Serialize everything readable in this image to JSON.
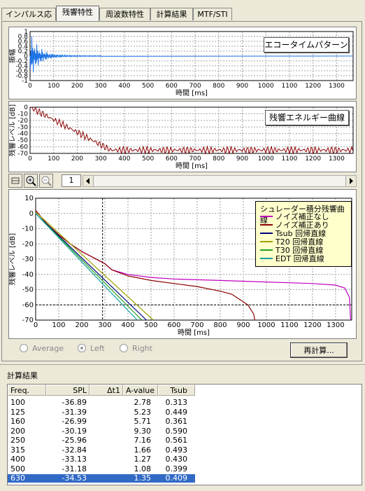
{
  "tabs": [
    {
      "label": "インパルス応答"
    },
    {
      "label": "残響特性"
    },
    {
      "label": "周波数特性"
    },
    {
      "label": "計算結果"
    },
    {
      "label": "MTF/STI"
    }
  ],
  "echo_plot": {
    "button_label": "エコータイムパターン",
    "ylabel": "振幅",
    "xlabel": "時間 [ms]",
    "x_ticks": [
      "0",
      "100",
      "200",
      "300",
      "400",
      "500",
      "600",
      "700",
      "800",
      "900",
      "1000",
      "1100",
      "1200",
      "1300"
    ],
    "y_ticks": [
      "1",
      "0.8",
      "0.6",
      "0.4",
      "0.2",
      "0",
      "-0.2",
      "-0.4",
      "-0.6",
      "-0.8",
      "-1"
    ],
    "color": "#1e74e6"
  },
  "energy_plot": {
    "button_label": "残響エネルギー曲線",
    "ylabel": "残響レベル [dB]",
    "xlabel": "時間 [ms]",
    "x_ticks": [
      "0",
      "100",
      "200",
      "300",
      "400",
      "500",
      "600",
      "700",
      "800",
      "900",
      "1000",
      "1100",
      "1200",
      "1300"
    ],
    "y_ticks": [
      "0",
      "-10",
      "-20",
      "-30",
      "-40",
      "-50",
      "-60",
      "-70"
    ],
    "color": "#8b0000"
  },
  "toolbar": {
    "page_value": "1",
    "icons": [
      "fit-icon",
      "zoom-in-icon",
      "zoom-out-icon"
    ]
  },
  "chart_data": {
    "type": "line",
    "xlabel": "時間 [ms]",
    "ylabel": "残響レベル [dB]",
    "xlim": [
      0,
      1370
    ],
    "ylim": [
      -70,
      10
    ],
    "x_ticks": [
      "0",
      "100",
      "200",
      "300",
      "400",
      "500",
      "600",
      "700",
      "800",
      "900",
      "1000",
      "1100",
      "1200",
      "1300"
    ],
    "y_ticks": [
      "10",
      "0",
      "-10",
      "-20",
      "-30",
      "-40",
      "-50",
      "-60",
      "-70"
    ],
    "grid": true,
    "legend_title": "シュレーダー積分残響曲線",
    "legend_position": "top-right",
    "dashed_x": 290,
    "dashed_y": -60,
    "series": [
      {
        "name": "ノイズ補正なし",
        "color": "#c000c0",
        "x": [
          0,
          50,
          100,
          150,
          200,
          250,
          300,
          330,
          400,
          500,
          600,
          700,
          800,
          900,
          1000,
          1100,
          1200,
          1300,
          1340,
          1360,
          1365
        ],
        "y": [
          2,
          -7,
          -14,
          -20,
          -25,
          -29,
          -33,
          -37,
          -40,
          -42,
          -43,
          -43.5,
          -44,
          -44.5,
          -45,
          -45.5,
          -46,
          -47,
          -49,
          -55,
          -70
        ]
      },
      {
        "name": "ノイズ補正あり",
        "color": "#8b0000",
        "x": [
          0,
          50,
          100,
          150,
          200,
          250,
          300,
          330,
          400,
          500,
          600,
          700,
          800,
          850,
          880,
          920,
          945,
          950
        ],
        "y": [
          2,
          -7,
          -14,
          -20,
          -25,
          -29,
          -33,
          -37,
          -41,
          -44,
          -46,
          -48,
          -51,
          -53,
          -56,
          -60,
          -66,
          -70
        ]
      },
      {
        "name": "Tsub 回帰直線",
        "color": "#000080",
        "x": [
          0,
          480
        ],
        "y": [
          0,
          -70
        ]
      },
      {
        "name": "T20 回帰直線",
        "color": "#a0a000",
        "x": [
          0,
          510
        ],
        "y": [
          1,
          -70
        ]
      },
      {
        "name": "T30 回帰直線",
        "color": "#20a020",
        "x": [
          0,
          460
        ],
        "y": [
          0,
          -70
        ]
      },
      {
        "name": "EDT 回帰直線",
        "color": "#10a0a0",
        "x": [
          0,
          440
        ],
        "y": [
          0,
          -70
        ]
      }
    ]
  },
  "radios": [
    {
      "label": "Average",
      "checked": false
    },
    {
      "label": "Left",
      "checked": true
    },
    {
      "label": "Right",
      "checked": false
    }
  ],
  "recalc_label": "再計算...",
  "results": {
    "title": "計算結果",
    "columns": [
      "Freq.",
      "SPL",
      "Δt1",
      "A-value",
      "Tsub"
    ],
    "rows": [
      {
        "freq": "100",
        "spl": "-36.89",
        "dt1": "",
        "a": "2.78",
        "tsub": "0.313"
      },
      {
        "freq": "125",
        "spl": "-31.39",
        "dt1": "",
        "a": "5.23",
        "tsub": "0.449"
      },
      {
        "freq": "160",
        "spl": "-26.99",
        "dt1": "",
        "a": "5.71",
        "tsub": "0.361"
      },
      {
        "freq": "200",
        "spl": "-30.19",
        "dt1": "",
        "a": "9.30",
        "tsub": "0.590"
      },
      {
        "freq": "250",
        "spl": "-25.96",
        "dt1": "",
        "a": "7.16",
        "tsub": "0.561"
      },
      {
        "freq": "315",
        "spl": "-32.84",
        "dt1": "",
        "a": "1.66",
        "tsub": "0.493"
      },
      {
        "freq": "400",
        "spl": "-33.13",
        "dt1": "",
        "a": "1.27",
        "tsub": "0.430"
      },
      {
        "freq": "500",
        "spl": "-31.18",
        "dt1": "",
        "a": "1.08",
        "tsub": "0.399"
      },
      {
        "freq": "630",
        "spl": "-34.53",
        "dt1": "",
        "a": "1.35",
        "tsub": "0.409"
      }
    ]
  }
}
